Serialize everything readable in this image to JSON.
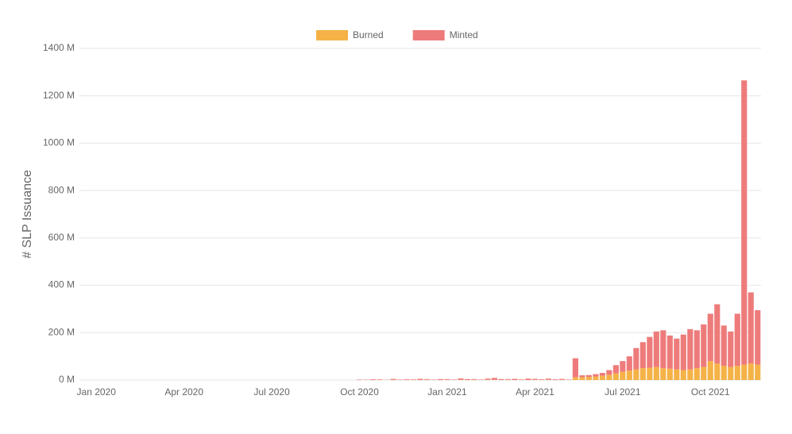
{
  "chart_data": {
    "type": "stacked-bar",
    "y_label": "# SLP Issuance",
    "categories": [
      null,
      null,
      "Jan 2020",
      null,
      null,
      null,
      null,
      null,
      null,
      null,
      null,
      null,
      null,
      null,
      null,
      "Apr 2020",
      null,
      null,
      null,
      null,
      null,
      null,
      null,
      null,
      null,
      null,
      null,
      null,
      "Jul 2020",
      null,
      null,
      null,
      null,
      null,
      null,
      null,
      null,
      null,
      null,
      null,
      null,
      "Oct 2020",
      null,
      null,
      null,
      null,
      null,
      null,
      null,
      null,
      null,
      null,
      null,
      null,
      "Jan 2021",
      null,
      null,
      null,
      null,
      null,
      null,
      null,
      null,
      null,
      null,
      null,
      null,
      "Apr 2021",
      null,
      null,
      null,
      null,
      null,
      null,
      null,
      null,
      null,
      null,
      null,
      null,
      "Jul 2021",
      null,
      null,
      null,
      null,
      null,
      null,
      null,
      null,
      null,
      null,
      null,
      null,
      "Oct 2021",
      null,
      null,
      null,
      null,
      null,
      null,
      null
    ],
    "series": [
      {
        "name": "Burned",
        "color": "#f5b247",
        "values": [
          0,
          0,
          0,
          0,
          0,
          0,
          0,
          0,
          0,
          0,
          0,
          0,
          0,
          0,
          0,
          0,
          0,
          0,
          0,
          0,
          0,
          0,
          0,
          0,
          0,
          0,
          0,
          0,
          0,
          0,
          0,
          0,
          0,
          0,
          0,
          0,
          0,
          0,
          0,
          0,
          0,
          0,
          1,
          0,
          1,
          0,
          1,
          0,
          0,
          1,
          0,
          1,
          0,
          0,
          1,
          0,
          1,
          0,
          1,
          0,
          1,
          1,
          0,
          1,
          0,
          1,
          0,
          1,
          0,
          1,
          0,
          1,
          0,
          12,
          12,
          13,
          15,
          18,
          22,
          28,
          35,
          40,
          45,
          50,
          52,
          55,
          50,
          48,
          45,
          42,
          45,
          50,
          55,
          80,
          70,
          60,
          55,
          60,
          65,
          70,
          65
        ]
      },
      {
        "name": "Minted",
        "color": "#ee7b7b",
        "values": [
          0,
          0,
          0,
          0,
          0,
          0,
          0,
          0,
          0,
          0,
          0,
          0,
          0,
          0,
          0,
          0,
          0,
          0,
          0,
          0,
          0,
          0,
          0,
          0,
          0,
          0,
          0,
          0,
          0,
          0,
          0,
          0,
          0,
          0,
          0,
          0,
          0,
          0,
          0,
          0,
          0,
          2,
          1,
          3,
          2,
          1,
          4,
          2,
          3,
          2,
          5,
          3,
          2,
          4,
          3,
          2,
          6,
          4,
          3,
          2,
          5,
          8,
          4,
          3,
          5,
          2,
          6,
          4,
          3,
          5,
          3,
          4,
          2,
          80,
          8,
          8,
          10,
          12,
          20,
          35,
          45,
          60,
          90,
          110,
          130,
          150,
          160,
          140,
          130,
          150,
          170,
          160,
          180,
          200,
          250,
          170,
          150,
          220,
          1200,
          300,
          230
        ]
      }
    ],
    "ylim": [
      0,
      1400
    ],
    "yticks": [
      {
        "value": 0,
        "label": "0 M"
      },
      {
        "value": 200,
        "label": "200 M"
      },
      {
        "value": 400,
        "label": "400 M"
      },
      {
        "value": 600,
        "label": "600 M"
      },
      {
        "value": 800,
        "label": "800 M"
      },
      {
        "value": 1000,
        "label": "1000 M"
      },
      {
        "value": 1200,
        "label": "1200 M"
      },
      {
        "value": 1400,
        "label": "1400 M"
      }
    ],
    "grid": true,
    "legend": "top"
  }
}
